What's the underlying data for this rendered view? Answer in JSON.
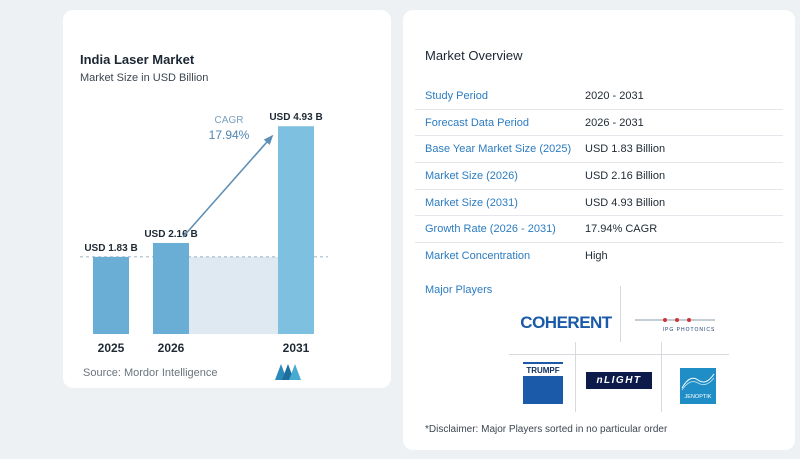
{
  "chart_title": "India Laser Market",
  "chart_subtitle": "Market Size in USD Billion",
  "source_text": "Source:  Mordor Intelligence",
  "cagr_label": "CAGR",
  "cagr_value": "17.94%",
  "chart_data": {
    "type": "bar",
    "title": "India Laser Market",
    "subtitle": "Market Size in USD Billion",
    "categories": [
      "2025",
      "2026",
      "2031"
    ],
    "values": [
      1.83,
      2.16,
      4.93
    ],
    "data_labels": [
      "USD 1.83 B",
      "USD 2.16 B",
      "USD 4.93 B"
    ],
    "ylim": [
      0,
      5.6
    ],
    "grid": false,
    "bar_color": "#6aaed6",
    "bar_color_highlight": "#7ec0df",
    "band_color": "#dfe9f2"
  },
  "overview": {
    "title": "Market Overview",
    "rows": [
      {
        "label": "Study Period",
        "value": "2020 - 2031"
      },
      {
        "label": "Forecast Data Period",
        "value": "2026 - 2031"
      },
      {
        "label": "Base Year Market Size (2025)",
        "value": "USD 1.83 Billion"
      },
      {
        "label": "Market Size (2026)",
        "value": "USD 2.16 Billion"
      },
      {
        "label": "Market Size (2031)",
        "value": "USD 4.93 Billion"
      },
      {
        "label": "Growth Rate (2026 - 2031)",
        "value": "17.94% CAGR"
      },
      {
        "label": "Market Concentration",
        "value": "High"
      }
    ],
    "major_players_title": "Major Players",
    "players": [
      "COHERENT",
      "IPG PHOTONICS",
      "TRUMPF",
      "nLIGHT",
      "JENOPTIK"
    ],
    "disclaimer": "*Disclaimer: Major Players sorted in no particular order"
  },
  "colors": {
    "accent": "#2b7cc0",
    "coherent": "#1a5aa8",
    "trumpf": "#1a5aa8",
    "nlight": "#0d1b4a",
    "jenoptik": "#1f8ec6"
  }
}
